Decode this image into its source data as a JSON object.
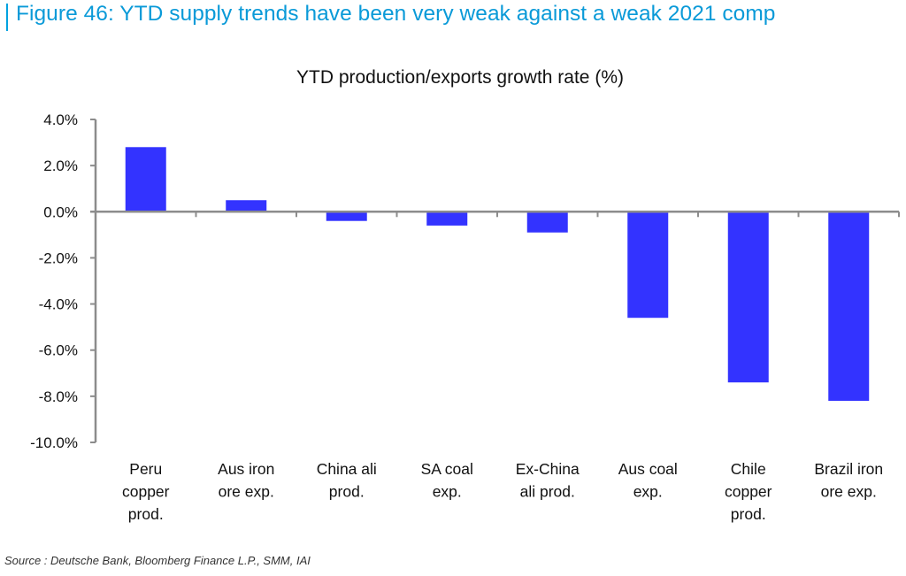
{
  "figure": {
    "title": "Figure 46: YTD supply trends have been very weak against a weak 2021 comp",
    "accent_color": "#00a2e0",
    "source": "Source : Deutsche Bank, Bloomberg Finance L.P., SMM, IAI"
  },
  "chart_data": {
    "type": "bar",
    "title": "YTD production/exports growth rate (%)",
    "xlabel": "",
    "ylabel": "",
    "categories": [
      [
        "Peru",
        "copper",
        "prod."
      ],
      [
        "Aus iron",
        "ore exp."
      ],
      [
        "China ali",
        "prod."
      ],
      [
        "SA coal",
        "exp."
      ],
      [
        "Ex-China",
        "ali prod."
      ],
      [
        "Aus coal",
        "exp."
      ],
      [
        "Chile",
        "copper",
        "prod."
      ],
      [
        "Brazil iron",
        "ore exp."
      ]
    ],
    "series": [
      {
        "name": "YTD growth rate",
        "color": "#3333ff",
        "values": [
          2.8,
          0.5,
          -0.4,
          -0.6,
          -0.9,
          -4.6,
          -7.4,
          -8.2
        ]
      }
    ],
    "ylim": [
      -10,
      4
    ],
    "yticks": [
      4,
      2,
      0,
      -2,
      -4,
      -6,
      -8,
      -10
    ],
    "ytick_labels": [
      "4.0%",
      "2.0%",
      "0.0%",
      "-2.0%",
      "-4.0%",
      "-6.0%",
      "-8.0%",
      "-10.0%"
    ],
    "grid": false,
    "legend": "none"
  }
}
